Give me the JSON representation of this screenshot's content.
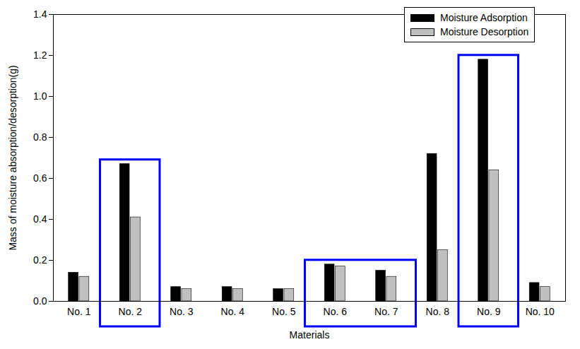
{
  "chart_data": {
    "type": "bar",
    "categories": [
      "No. 1",
      "No. 2",
      "No. 3",
      "No. 4",
      "No. 5",
      "No. 6",
      "No. 7",
      "No. 8",
      "No. 9",
      "No. 10"
    ],
    "series": [
      {
        "name": "Moisture Adsorption",
        "color": "#000000",
        "values": [
          0.14,
          0.67,
          0.07,
          0.07,
          0.06,
          0.18,
          0.15,
          0.72,
          1.18,
          0.09
        ]
      },
      {
        "name": "Moisture Desorption",
        "color": "#c0c0c0",
        "values": [
          0.12,
          0.41,
          0.06,
          0.06,
          0.06,
          0.17,
          0.12,
          0.25,
          0.64,
          0.07
        ]
      }
    ],
    "xlabel": "Materials",
    "ylabel": "Mass of moisture absorption/desorption(g)",
    "ylim": [
      0,
      1.4
    ],
    "yticks": [
      {
        "value": 0,
        "label": "0.0"
      },
      0.2,
      0.4,
      0.6,
      0.8,
      {
        "value": 1,
        "label": "1.0"
      },
      1.2,
      1.4
    ],
    "legend": "upper right",
    "highlights": [
      [
        "No. 2"
      ],
      [
        "No. 6",
        "No. 7"
      ],
      [
        "No. 9"
      ]
    ]
  }
}
